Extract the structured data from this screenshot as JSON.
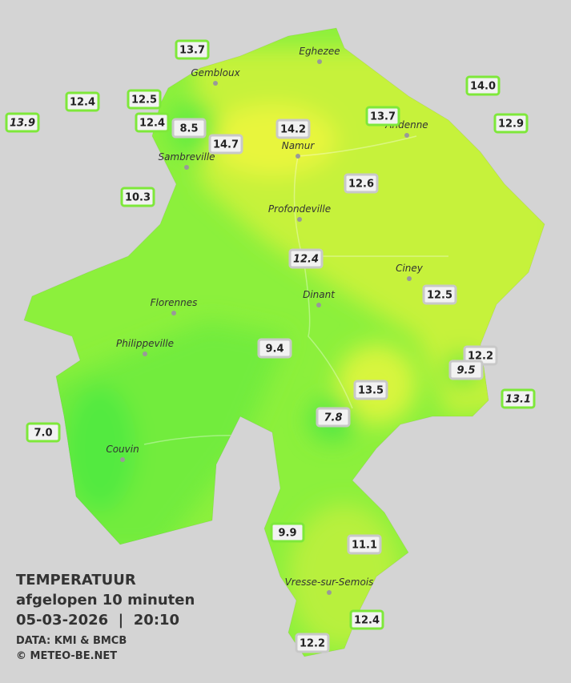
{
  "legend": {
    "title": "TEMPERATUUR",
    "subtitle": "afgelopen 10 minuten",
    "timestamp": "05-03-2026  |  20:10",
    "source": "DATA: KMI & BMCB",
    "copyright": "© METEO-BE.NET"
  },
  "towns": [
    "Eghezee",
    "Gembloux",
    "Andenne",
    "Namur",
    "Sambreville",
    "Profondeville",
    "Ciney",
    "Dinant",
    "Florennes",
    "Philippeville",
    "Couvin",
    "Vresse-sur-Semois"
  ],
  "readings": [
    "13.7",
    "12.4",
    "12.5",
    "13.9",
    "12.4",
    "8.5",
    "14.7",
    "14.2",
    "13.7",
    "14.0",
    "12.9",
    "10.3",
    "12.6",
    "12.4",
    "12.5",
    "9.4",
    "12.2",
    "9.5",
    "13.5",
    "13.1",
    "7.8",
    "7.0",
    "9.9",
    "11.1",
    "12.4",
    "12.2"
  ]
}
